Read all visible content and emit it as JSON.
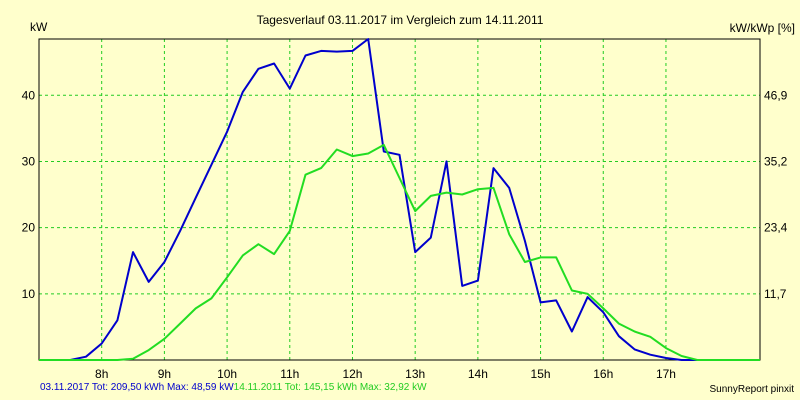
{
  "colors": {
    "background": "#ffffcc",
    "grid": "#22cc22",
    "series_2017": "#0000cc",
    "series_2011": "#22dd22"
  },
  "footer": {
    "legend_2017": "03.11.2017 Tot: 209,50 kWh Max: 48,59 kW",
    "legend_2011": "14.11.2011 Tot: 145,15 kWh Max: 32,92 kW",
    "credit": "SunnyReport pinxit"
  },
  "chart_data": {
    "type": "line",
    "title": "Tagesverlauf 03.11.2017 im Vergleich zum 14.11.2011",
    "ylabel": "kW",
    "ylabel_right": "kW/kWp [%]",
    "xlim": [
      7.0,
      18.5
    ],
    "ylim": [
      0,
      48.5
    ],
    "x_ticks": [
      8,
      9,
      10,
      11,
      12,
      13,
      14,
      15,
      16,
      17
    ],
    "x_tick_labels": [
      "8h",
      "9h",
      "10h",
      "11h",
      "12h",
      "13h",
      "14h",
      "15h",
      "16h",
      "17h"
    ],
    "y_ticks": [
      10,
      20,
      30,
      40
    ],
    "y_tick_labels": [
      "10",
      "20",
      "30",
      "40"
    ],
    "y_right_tick_labels": [
      "11,7",
      "23,4",
      "35,2",
      "46,9"
    ],
    "grid": true,
    "series": [
      {
        "name": "03.11.2017",
        "color": "#0000cc",
        "x": [
          7.0,
          7.5,
          7.75,
          8.0,
          8.25,
          8.5,
          8.75,
          9.0,
          9.25,
          9.5,
          9.75,
          10.0,
          10.25,
          10.5,
          10.75,
          11.0,
          11.25,
          11.5,
          11.75,
          12.0,
          12.25,
          12.5,
          12.75,
          13.0,
          13.25,
          13.5,
          13.75,
          14.0,
          14.25,
          14.5,
          14.75,
          15.0,
          15.25,
          15.5,
          15.75,
          16.0,
          16.25,
          16.5,
          16.75,
          17.0,
          17.25,
          17.5,
          17.75,
          18.0,
          18.5
        ],
        "y": [
          0,
          0,
          0.5,
          2.5,
          6,
          16.3,
          11.8,
          14.8,
          19.5,
          24.5,
          29.5,
          34.5,
          40.5,
          44,
          44.8,
          41,
          46,
          46.7,
          46.6,
          46.7,
          48.5,
          31.5,
          31,
          16.3,
          18.5,
          30,
          11.2,
          12,
          29,
          26,
          18,
          8.7,
          9,
          4.3,
          9.5,
          7.2,
          3.6,
          1.6,
          0.8,
          0.3,
          0,
          0,
          0,
          0,
          0
        ]
      },
      {
        "name": "14.11.2011",
        "color": "#22dd22",
        "x": [
          7.0,
          8.25,
          8.5,
          8.75,
          9.0,
          9.25,
          9.5,
          9.75,
          10.0,
          10.25,
          10.5,
          10.75,
          11.0,
          11.25,
          11.5,
          11.75,
          12.0,
          12.25,
          12.5,
          12.75,
          13.0,
          13.25,
          13.5,
          13.75,
          14.0,
          14.25,
          14.5,
          14.75,
          15.0,
          15.25,
          15.5,
          15.75,
          16.0,
          16.25,
          16.5,
          16.75,
          17.0,
          17.25,
          17.5,
          17.75,
          18.0,
          18.5
        ],
        "y": [
          0,
          0,
          0.2,
          1.5,
          3.2,
          5.5,
          7.8,
          9.3,
          12.5,
          15.8,
          17.5,
          16,
          19.5,
          28,
          29,
          31.8,
          30.8,
          31.2,
          32.5,
          27.5,
          22.5,
          24.8,
          25.3,
          25,
          25.8,
          26,
          19,
          14.8,
          15.5,
          15.5,
          10.5,
          10,
          7.8,
          5.5,
          4.3,
          3.5,
          1.8,
          0.6,
          0,
          0,
          0,
          0
        ]
      }
    ]
  }
}
